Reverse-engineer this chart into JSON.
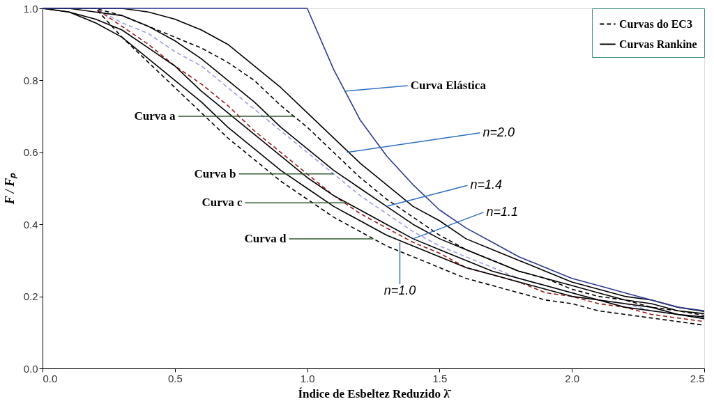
{
  "chart_data": {
    "type": "line",
    "xlabel": "Índice de Esbeltez Reduzido λ̄",
    "ylabel": "F / Fₚ",
    "x": [
      0,
      0.1,
      0.2,
      0.3,
      0.4,
      0.5,
      0.6,
      0.7,
      0.8,
      0.9,
      1.0,
      1.1,
      1.2,
      1.3,
      1.4,
      1.5,
      1.6,
      1.7,
      1.8,
      1.9,
      2.0,
      2.1,
      2.2,
      2.3,
      2.4,
      2.5
    ],
    "xlim": [
      0,
      2.5
    ],
    "ylim": [
      0,
      1
    ],
    "xticks": [
      {
        "value": 0,
        "label": "0.0"
      },
      {
        "value": 0.5,
        "label": "0.5"
      },
      {
        "value": 1,
        "label": "1.0"
      },
      {
        "value": 1.5,
        "label": "1.5"
      },
      {
        "value": 2,
        "label": "2.0"
      },
      {
        "value": 2.5,
        "label": "2.5"
      }
    ],
    "yticks": [
      {
        "value": 0,
        "label": "0.0"
      },
      {
        "value": 0.2,
        "label": "0.2"
      },
      {
        "value": 0.4,
        "label": "0.4"
      },
      {
        "value": 0.6,
        "label": "0.6"
      },
      {
        "value": 0.8,
        "label": "0.8"
      },
      {
        "value": 1,
        "label": "1.0"
      }
    ],
    "grid": false,
    "legend": "top right",
    "marker": "none",
    "series": [
      {
        "name": "Curvas do EC3",
        "color": "#000000",
        "line_style": "dashed",
        "values": [
          1,
          1,
          1,
          0.98,
          0.95,
          0.92,
          0.89,
          0.85,
          0.8,
          0.73,
          0.67,
          0.6,
          0.53,
          0.47,
          0.42,
          0.37,
          0.33,
          0.3,
          0.27,
          0.25,
          0.22,
          0.2,
          0.19,
          0.17,
          0.16,
          0.147
        ]
      },
      {
        "color": "#9a9cf0",
        "line_style": "dashed",
        "values": [
          1,
          1,
          1,
          0.96,
          0.93,
          0.88,
          0.84,
          0.78,
          0.72,
          0.66,
          0.6,
          0.54,
          0.48,
          0.43,
          0.38,
          0.34,
          0.31,
          0.28,
          0.25,
          0.23,
          0.21,
          0.19,
          0.18,
          0.16,
          0.15,
          0.14
        ]
      },
      {
        "color": "#a01818",
        "line_style": "dashed",
        "values": [
          1,
          1,
          1,
          0.95,
          0.9,
          0.84,
          0.79,
          0.73,
          0.66,
          0.6,
          0.54,
          0.48,
          0.43,
          0.39,
          0.35,
          0.32,
          0.28,
          0.26,
          0.24,
          0.21,
          0.2,
          0.18,
          0.17,
          0.15,
          0.14,
          0.13
        ]
      },
      {
        "color": "#000000",
        "line_style": "dashed",
        "values": [
          1,
          1,
          1,
          0.92,
          0.85,
          0.78,
          0.71,
          0.64,
          0.58,
          0.52,
          0.47,
          0.42,
          0.38,
          0.34,
          0.31,
          0.28,
          0.25,
          0.23,
          0.21,
          0.19,
          0.18,
          0.16,
          0.15,
          0.14,
          0.13,
          0.12
        ]
      },
      {
        "name": "Curvas Rankine",
        "color": "#000000",
        "line_style": "solid",
        "values": [
          1,
          1,
          1,
          1,
          0.99,
          0.97,
          0.94,
          0.9,
          0.84,
          0.78,
          0.71,
          0.64,
          0.57,
          0.51,
          0.45,
          0.41,
          0.36,
          0.33,
          0.3,
          0.27,
          0.24,
          0.22,
          0.2,
          0.19,
          0.17,
          0.158
        ]
      },
      {
        "color": "#000000",
        "line_style": "solid",
        "values": [
          1,
          1,
          0.99,
          0.98,
          0.95,
          0.91,
          0.86,
          0.8,
          0.74,
          0.67,
          0.61,
          0.55,
          0.5,
          0.45,
          0.4,
          0.36,
          0.33,
          0.3,
          0.27,
          0.25,
          0.23,
          0.21,
          0.19,
          0.18,
          0.16,
          0.152
        ]
      },
      {
        "color": "#000000",
        "line_style": "solid",
        "values": [
          1,
          0.99,
          0.97,
          0.94,
          0.89,
          0.84,
          0.77,
          0.71,
          0.65,
          0.59,
          0.53,
          0.48,
          0.44,
          0.4,
          0.36,
          0.33,
          0.3,
          0.27,
          0.25,
          0.23,
          0.21,
          0.19,
          0.18,
          0.17,
          0.15,
          0.143
        ]
      },
      {
        "color": "#000000",
        "line_style": "solid",
        "values": [
          1,
          0.99,
          0.96,
          0.92,
          0.86,
          0.8,
          0.74,
          0.67,
          0.61,
          0.55,
          0.5,
          0.45,
          0.41,
          0.37,
          0.34,
          0.31,
          0.28,
          0.26,
          0.24,
          0.22,
          0.2,
          0.19,
          0.17,
          0.16,
          0.15,
          0.138
        ]
      },
      {
        "color": "#2e3a94",
        "line_style": "solid",
        "values": [
          1,
          1,
          1,
          1,
          1,
          1,
          1,
          1,
          1,
          1,
          1,
          0.83,
          0.69,
          0.59,
          0.51,
          0.44,
          0.39,
          0.35,
          0.31,
          0.28,
          0.25,
          0.23,
          0.21,
          0.19,
          0.17,
          0.16
        ]
      }
    ],
    "annotations": [
      {
        "text": "Curva Elástica",
        "x": 1.14,
        "y": 0.77
      },
      {
        "text": "Curva a",
        "x": 0.95,
        "y": 0.7
      },
      {
        "text": "Curva b",
        "x": 1.1,
        "y": 0.54
      },
      {
        "text": "Curva c",
        "x": 1.15,
        "y": 0.46
      },
      {
        "text": "Curva d",
        "x": 1.25,
        "y": 0.36
      },
      {
        "text": "n=2.0",
        "x": 1.15,
        "y": 0.6
      },
      {
        "text": "n=1.4",
        "x": 1.3,
        "y": 0.45
      },
      {
        "text": "n=1.1",
        "x": 1.4,
        "y": 0.36
      },
      {
        "text": "n=1.0",
        "x": 1.35,
        "y": 0.35
      }
    ]
  }
}
